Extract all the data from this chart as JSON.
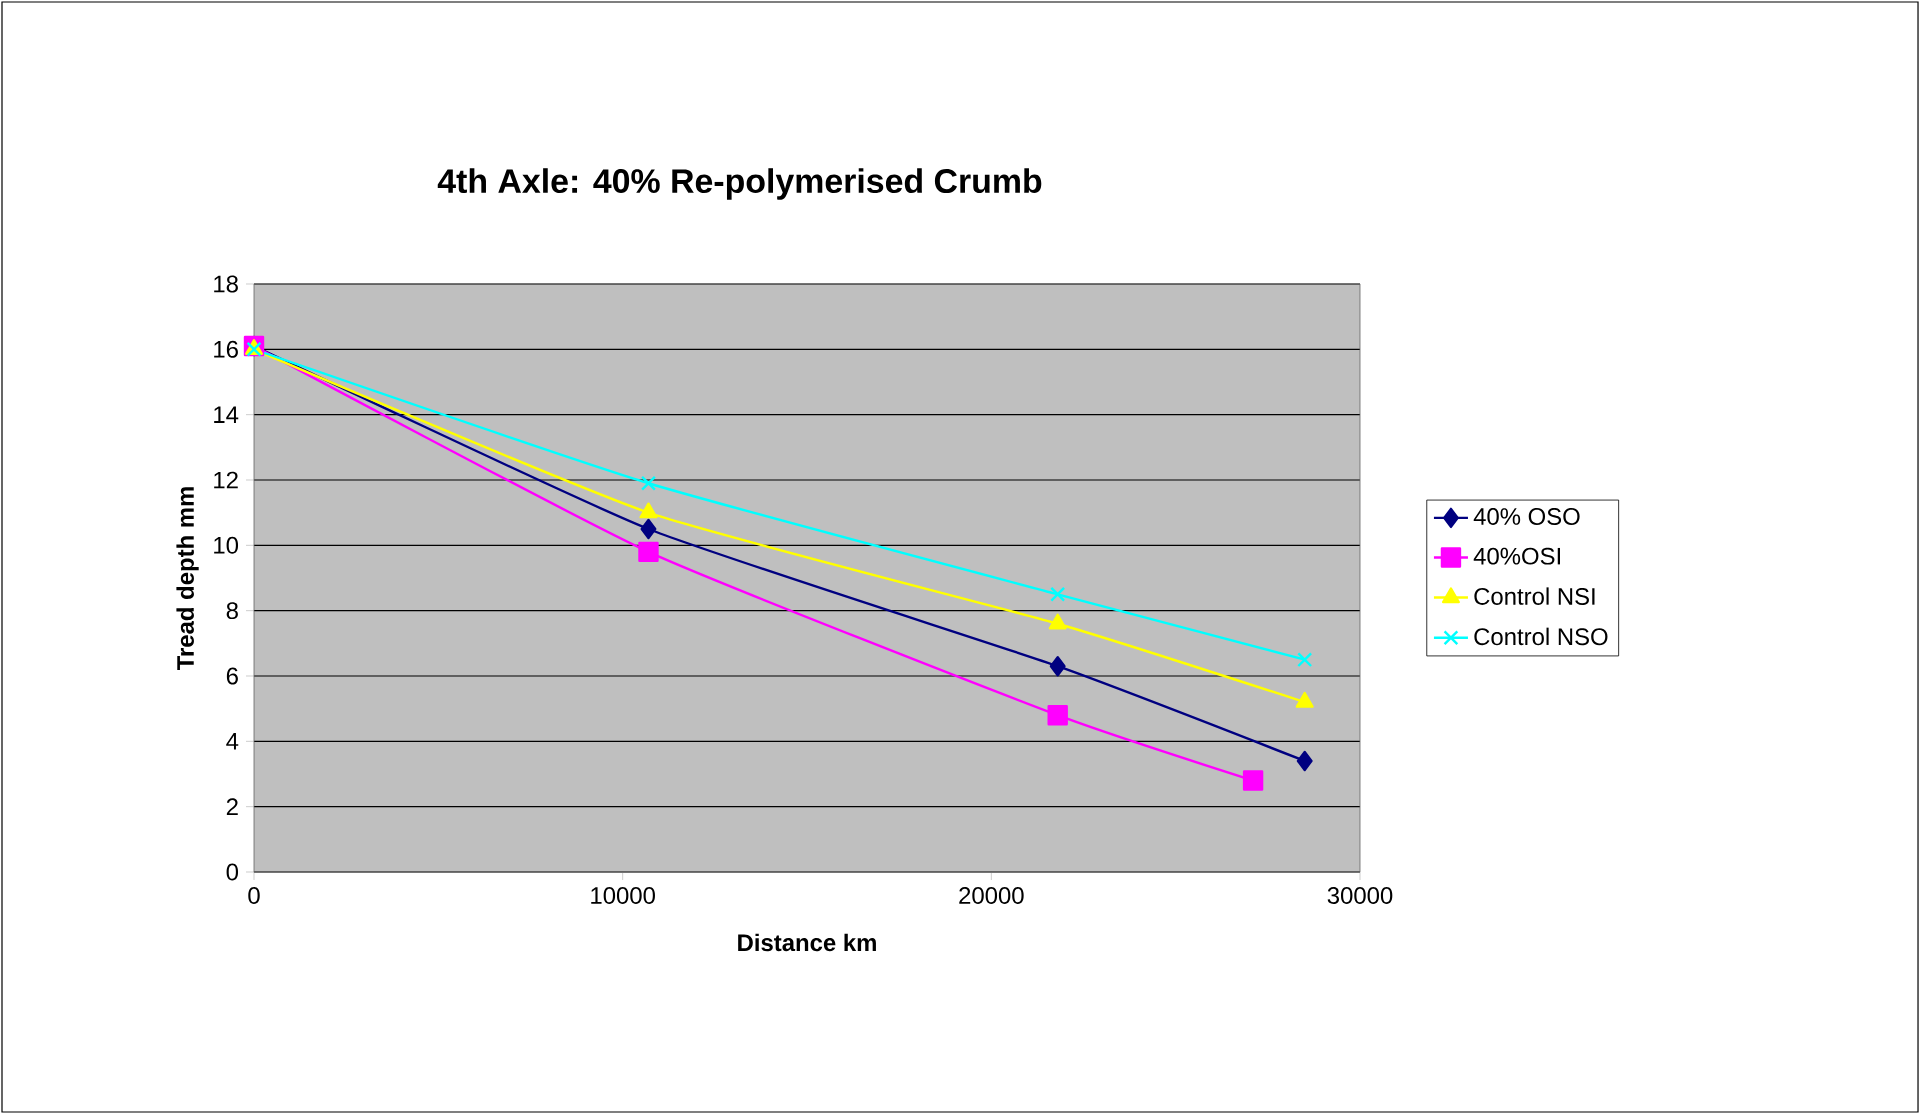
{
  "chart_data": {
    "type": "line",
    "title": "4th Axle: 40% Re-polymerised Crumb",
    "xlabel": "Distance km",
    "ylabel": "Tread depth mm",
    "xlim": [
      0,
      30000
    ],
    "xticks": [
      0,
      10000,
      20000,
      30000
    ],
    "ylim": [
      0,
      18
    ],
    "yticks": [
      0,
      2,
      4,
      6,
      8,
      10,
      12,
      14,
      16,
      18
    ],
    "grid": "y",
    "legend": "right",
    "series": [
      {
        "name": "40% OSO",
        "color": "#000080",
        "marker": "diamond",
        "x": [
          0,
          10700,
          21800,
          28500
        ],
        "values": [
          16.1,
          10.5,
          6.3,
          3.4
        ]
      },
      {
        "name": "40%OSI",
        "color": "#ff00ff",
        "marker": "square",
        "x": [
          0,
          10700,
          21800,
          27100
        ],
        "values": [
          16.1,
          9.8,
          4.8,
          2.8
        ]
      },
      {
        "name": "Control NSI",
        "color": "#ffff00",
        "marker": "triangle",
        "x": [
          0,
          10700,
          21800,
          28500
        ],
        "values": [
          16,
          11,
          7.6,
          5.2
        ]
      },
      {
        "name": "Control NSO",
        "color": "#00ffff",
        "marker": "cross",
        "x": [
          0,
          10700,
          21800,
          28500
        ],
        "values": [
          16,
          11.9,
          8.5,
          6.5
        ]
      }
    ]
  }
}
